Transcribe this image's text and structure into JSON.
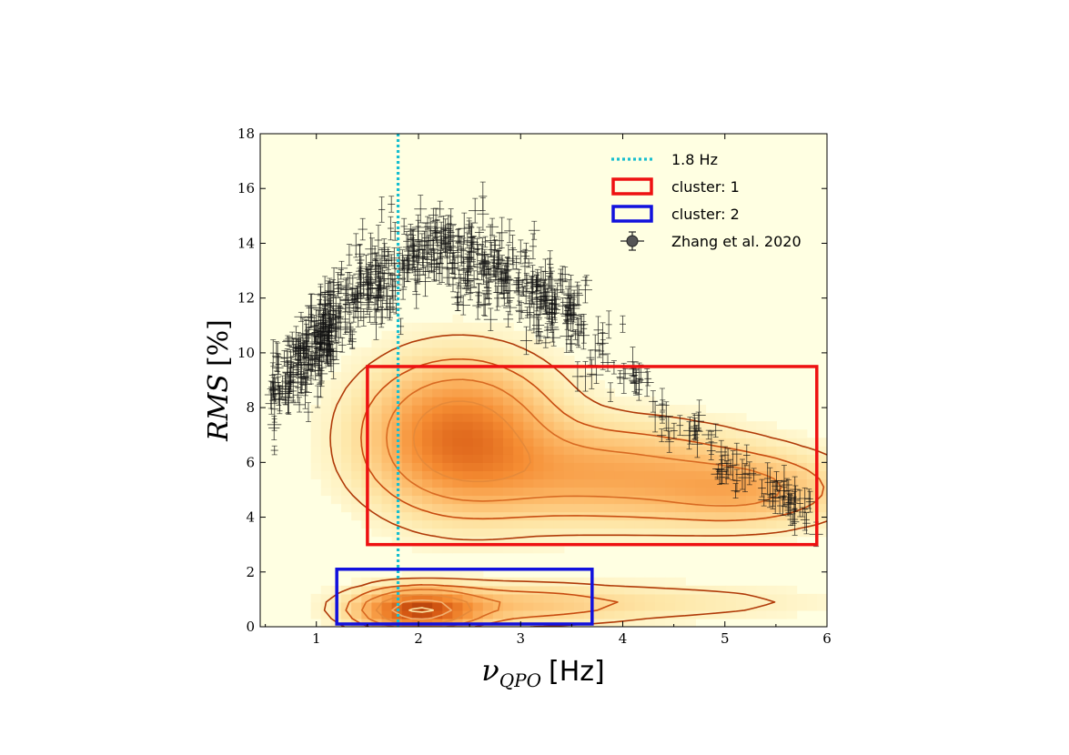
{
  "chart_data": {
    "type": "scatter",
    "title": "",
    "xlabel": {
      "symbol": "ν",
      "subscript": "QPO",
      "unit": "[Hz]"
    },
    "ylabel": {
      "symbol": "RMS",
      "unit": "[%]"
    },
    "xlim": [
      0.45,
      6.0
    ],
    "ylim": [
      0,
      18
    ],
    "x_ticks": [
      1,
      2,
      3,
      4,
      5,
      6
    ],
    "y_ticks": [
      0,
      2,
      4,
      6,
      8,
      10,
      12,
      14,
      16,
      18
    ],
    "grid": false,
    "legend": {
      "placement": "top-right",
      "entries": [
        {
          "label": "1.8 Hz",
          "kind": "dotted-line",
          "color": "#17becf"
        },
        {
          "label": "cluster: 1",
          "kind": "box",
          "color": "#ee1111"
        },
        {
          "label": "cluster: 2",
          "kind": "box",
          "color": "#1111dd"
        },
        {
          "label": "Zhang et al. 2020",
          "kind": "errorbar-point",
          "color": "#000000"
        }
      ]
    },
    "reference_line": {
      "label": "1.8 Hz",
      "x": 1.8,
      "color": "#17becf"
    },
    "clusters": [
      {
        "label": "cluster: 1",
        "x_range": [
          1.5,
          5.9
        ],
        "y_range": [
          3.0,
          9.5
        ],
        "color": "#ee1111"
      },
      {
        "label": "cluster: 2",
        "x_range": [
          1.2,
          3.7
        ],
        "y_range": [
          0.1,
          2.1
        ],
        "color": "#1111dd"
      }
    ],
    "density": {
      "description": "2D KDE density of simulated QPO population (orange heatmap with contours)",
      "components": [
        {
          "mu_x": 2.4,
          "mu_y": 7.0,
          "sigma_x": 0.55,
          "sigma_y": 1.6,
          "weight": 1.0
        },
        {
          "mu_x": 3.8,
          "mu_y": 5.6,
          "sigma_x": 0.9,
          "sigma_y": 1.1,
          "weight": 0.55
        },
        {
          "mu_x": 5.2,
          "mu_y": 5.0,
          "sigma_x": 0.6,
          "sigma_y": 0.8,
          "weight": 0.45
        },
        {
          "mu_x": 2.0,
          "mu_y": 0.6,
          "sigma_x": 0.35,
          "sigma_y": 0.45,
          "weight": 1.3
        },
        {
          "mu_x": 2.8,
          "mu_y": 0.8,
          "sigma_x": 0.8,
          "sigma_y": 0.45,
          "weight": 0.35
        },
        {
          "mu_x": 4.5,
          "mu_y": 0.9,
          "sigma_x": 1.0,
          "sigma_y": 0.4,
          "weight": 0.12
        }
      ],
      "contour_levels": [
        0.05,
        0.15,
        0.3,
        0.5,
        0.75,
        0.95
      ]
    },
    "observations": {
      "label": "Zhang et al. 2020",
      "n_points": 750,
      "trend_knots": {
        "x": [
          0.55,
          1.0,
          1.4,
          1.8,
          2.2,
          2.6,
          3.0,
          3.4,
          3.8,
          4.2,
          4.6,
          5.0,
          5.4,
          5.9
        ],
        "y": [
          8.5,
          10.5,
          12.4,
          13.2,
          13.8,
          13.2,
          12.6,
          11.6,
          10.2,
          8.8,
          7.2,
          6.2,
          5.2,
          4.0
        ]
      },
      "x_range": [
        0.55,
        5.95
      ],
      "scatter_rms": 0.8,
      "rms_error_typical": 0.4
    }
  }
}
